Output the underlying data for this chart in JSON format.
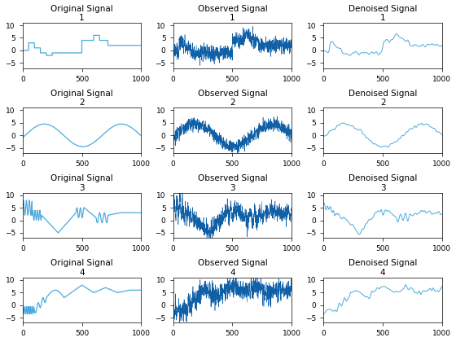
{
  "nrows": 4,
  "ncols": 3,
  "n": 1000,
  "titles_col": [
    "Original Signal",
    "Observed Signal",
    "Denoised Signal"
  ],
  "ylim": [
    -7,
    11
  ],
  "yticks": [
    -5,
    0,
    5,
    10
  ],
  "xlim": [
    0,
    1000
  ],
  "xticks": [
    0,
    500,
    1000
  ],
  "line_color_original": "#4daadd",
  "line_color_observed": "#1060a8",
  "line_color_denoised": "#4daadd",
  "background": "white",
  "title_fontsize": 7.5,
  "tick_fontsize": 6.5,
  "linewidth_orig": 0.9,
  "linewidth_obs": 0.4,
  "linewidth_den": 0.7,
  "figsize": [
    5.6,
    4.2
  ],
  "dpi": 100
}
